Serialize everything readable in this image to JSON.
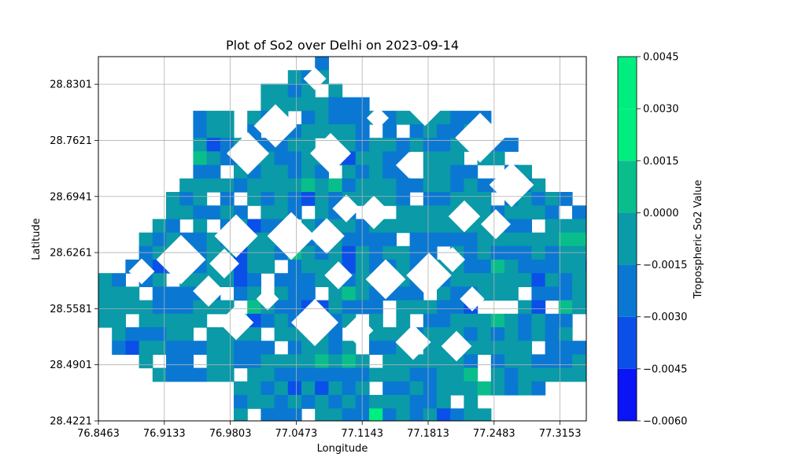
{
  "chart_data": {
    "type": "heatmap",
    "subtype": "filled-contour",
    "title": "Plot of So2 over Delhi on 2023-09-14",
    "xlabel": "Longitude",
    "ylabel": "Latitude",
    "xlim": [
      76.8463,
      77.342
    ],
    "ylim": [
      28.4221,
      28.8636
    ],
    "grid": true,
    "x_ticks": [
      "76.8463",
      "76.9133",
      "76.9803",
      "77.0473",
      "77.1143",
      "77.1813",
      "77.2483",
      "77.3153"
    ],
    "y_ticks": [
      "28.4221",
      "28.4901",
      "28.5581",
      "28.6261",
      "28.6941",
      "28.7621",
      "28.8301"
    ],
    "colorbar": {
      "label": "Tropospheric So2 Value",
      "ticks": [
        "−0.0060",
        "−0.0045",
        "−0.0030",
        "−0.0015",
        "0.0000",
        "0.0015",
        "0.0030",
        "0.0045"
      ],
      "levels": [
        -0.006,
        -0.0045,
        -0.003,
        -0.0015,
        0.0,
        0.0015,
        0.003,
        0.0045
      ],
      "colors": [
        "#0a14f5",
        "#0a50e8",
        "#0a78d2",
        "#0a9aa8",
        "#0abe8c",
        "#00ee80"
      ],
      "colormap": "winter"
    }
  }
}
